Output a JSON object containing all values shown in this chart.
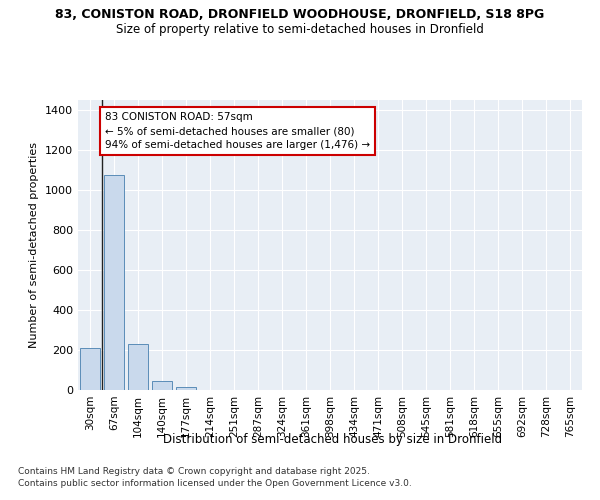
{
  "title_line1": "83, CONISTON ROAD, DRONFIELD WOODHOUSE, DRONFIELD, S18 8PG",
  "title_line2": "Size of property relative to semi-detached houses in Dronfield",
  "xlabel": "Distribution of semi-detached houses by size in Dronfield",
  "ylabel": "Number of semi-detached properties",
  "categories": [
    "30sqm",
    "67sqm",
    "104sqm",
    "140sqm",
    "177sqm",
    "214sqm",
    "251sqm",
    "287sqm",
    "324sqm",
    "361sqm",
    "398sqm",
    "434sqm",
    "471sqm",
    "508sqm",
    "545sqm",
    "581sqm",
    "618sqm",
    "655sqm",
    "692sqm",
    "728sqm",
    "765sqm"
  ],
  "values": [
    210,
    1075,
    230,
    45,
    15,
    0,
    0,
    0,
    0,
    0,
    0,
    0,
    0,
    0,
    0,
    0,
    0,
    0,
    0,
    0,
    0
  ],
  "bar_color": "#c9d9ec",
  "bar_edge_color": "#5b8db8",
  "annotation_text": "83 CONISTON ROAD: 57sqm\n← 5% of semi-detached houses are smaller (80)\n94% of semi-detached houses are larger (1,476) →",
  "annotation_box_color": "#ffffff",
  "annotation_edge_color": "#cc0000",
  "vline_x": 0.5,
  "ylim": [
    0,
    1450
  ],
  "yticks": [
    0,
    200,
    400,
    600,
    800,
    1000,
    1200,
    1400
  ],
  "background_color": "#e8eef5",
  "grid_color": "#ffffff",
  "footer_line1": "Contains HM Land Registry data © Crown copyright and database right 2025.",
  "footer_line2": "Contains public sector information licensed under the Open Government Licence v3.0.",
  "fig_bg": "#ffffff"
}
